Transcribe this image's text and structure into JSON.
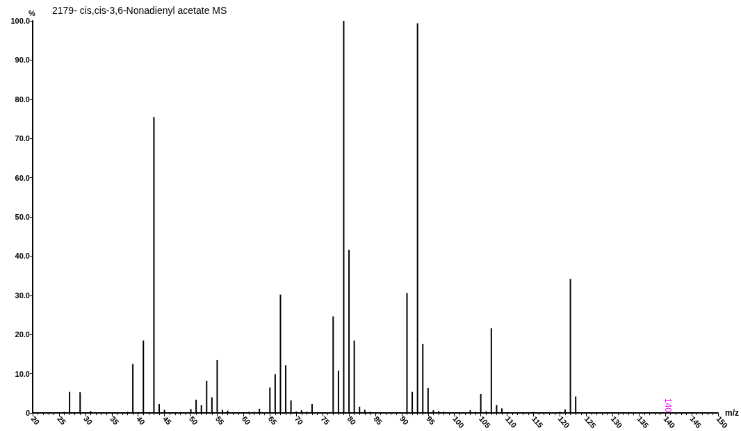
{
  "chart_data": {
    "type": "bar",
    "title": "2179- cis,cis-3,6-Nonadienyl acetate MS",
    "xlabel": "m/z",
    "ylabel": "%",
    "color": "#000000",
    "x": [
      26,
      27,
      29,
      31,
      38,
      39,
      41,
      43,
      44,
      45,
      50,
      51,
      52,
      53,
      54,
      55,
      56,
      57,
      58,
      59,
      60,
      61,
      62,
      63,
      65,
      66,
      67,
      68,
      69,
      70,
      71,
      72,
      73,
      74,
      75,
      77,
      78,
      79,
      80,
      81,
      82,
      83,
      84,
      85,
      89,
      91,
      92,
      93,
      94,
      95,
      96,
      97,
      98,
      103,
      104,
      105,
      106,
      107,
      108,
      109,
      110,
      115,
      117,
      119,
      120,
      121,
      122,
      123
    ],
    "values": [
      0.3,
      5.4,
      5.3,
      0.5,
      0.3,
      12.5,
      18.5,
      75.5,
      2.3,
      0.8,
      1.0,
      3.4,
      2.0,
      8.2,
      4.0,
      13.5,
      0.8,
      0.6,
      0.2,
      0.2,
      0.2,
      0.3,
      0.3,
      1.1,
      6.5,
      9.9,
      30.2,
      12.2,
      3.2,
      0.4,
      0.7,
      0.3,
      2.3,
      0.2,
      0.2,
      24.6,
      10.8,
      100,
      41.6,
      18.5,
      1.6,
      0.8,
      0.3,
      0.2,
      0.2,
      30.6,
      5.4,
      99.4,
      17.6,
      6.4,
      0.7,
      0.5,
      0.3,
      0.7,
      0.3,
      4.8,
      0.4,
      21.6,
      2.0,
      1.2,
      0.2,
      0.3,
      0.2,
      0.2,
      0.3,
      0.9,
      34.2,
      4.2
    ],
    "xlim": [
      20,
      150
    ],
    "xticks": [
      20,
      25,
      30,
      35,
      40,
      45,
      50,
      55,
      60,
      65,
      70,
      75,
      80,
      85,
      90,
      95,
      100,
      105,
      110,
      115,
      120,
      125,
      130,
      135,
      140,
      145,
      150
    ],
    "ylim": [
      0,
      100
    ],
    "yticks": [
      0,
      {
        "value": 10,
        "label": "10.0"
      },
      {
        "value": 20,
        "label": "20.0"
      },
      {
        "value": 30,
        "label": "30.0"
      },
      {
        "value": 40,
        "label": "40.0"
      },
      {
        "value": 50,
        "label": "50.0"
      },
      {
        "value": 60,
        "label": "60.0"
      },
      {
        "value": 70,
        "label": "70.0"
      },
      {
        "value": 80,
        "label": "80.0"
      },
      {
        "value": 90,
        "label": "90.0"
      },
      {
        "value": 100,
        "label": "100.0"
      }
    ],
    "annotations": [
      "140"
    ],
    "grid": false
  }
}
